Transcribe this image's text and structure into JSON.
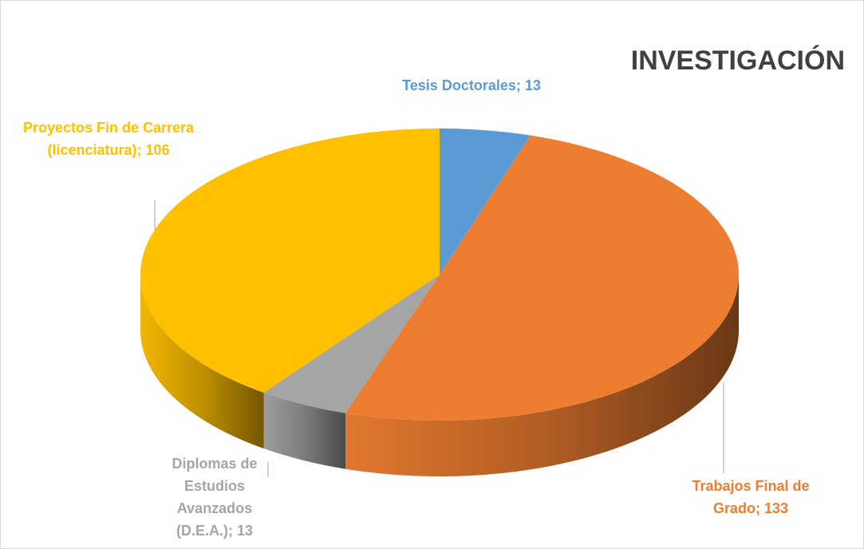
{
  "chart_data": {
    "type": "pie",
    "title": "INVESTIGACIÓN",
    "categories": [
      "Tesis Doctorales",
      "Trabajos Final de Grado",
      "Diplomas de Estudios Avanzados (D.E.A.)",
      "Proyectos Fin de Carrera (licenciatura)"
    ],
    "values": [
      13,
      133,
      13,
      106
    ],
    "value_labels": [
      "Tesis Doctorales; 13",
      "Trabajos Final de Grado; 133",
      "Diplomas de Estudios Avanzados (D.E.A.); 13",
      "Proyectos Fin de Carrera (licenciatura); 106"
    ],
    "colors": [
      "#5b9bd5",
      "#ed7d31",
      "#a5a5a5",
      "#ffc000"
    ]
  }
}
